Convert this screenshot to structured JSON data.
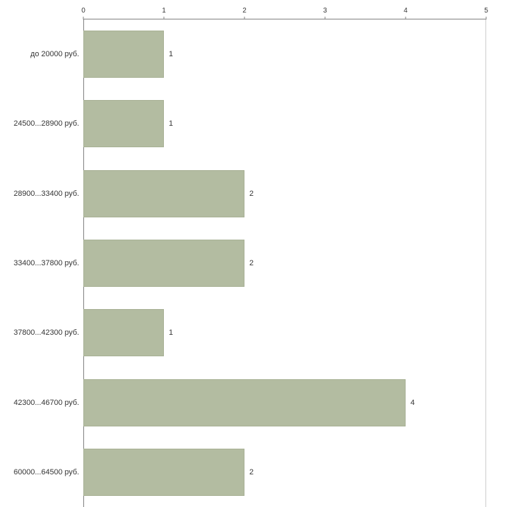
{
  "chart_data": {
    "type": "bar",
    "orientation": "horizontal",
    "title": "",
    "xlabel": "",
    "ylabel": "",
    "categories": [
      "до 20000 руб.",
      "24500...28900 руб.",
      "28900...33400 руб.",
      "33400...37800 руб.",
      "37800...42300 руб.",
      "42300...46700 руб.",
      "60000...64500 руб."
    ],
    "values": [
      1,
      1,
      2,
      2,
      1,
      4,
      2
    ],
    "xlim": [
      0,
      5
    ],
    "x_ticks": [
      0,
      1,
      2,
      3,
      4,
      5
    ],
    "x_axis_position": "top",
    "grid": false,
    "legend": "none",
    "bar_color": "#b3bca1",
    "bar_border_color": "#a7b094",
    "axis_color": "#7f7f7f",
    "text_color": "#333333",
    "value_labels_shown": true
  }
}
